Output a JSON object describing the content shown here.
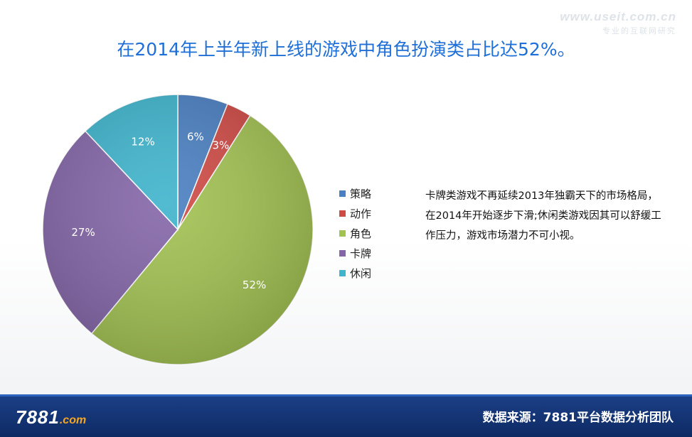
{
  "watermark": {
    "url": "www.useit.com.cn",
    "subtitle": "专业的互联网研究"
  },
  "title": "在2014年上半年新上线的游戏中角色扮演类占比达52%。",
  "note": "卡牌类游戏不再延续2013年独霸天下的市场格局，在2014年开始逐步下滑;休闲类游戏因其可以舒缓工作压力，游戏市场潜力不可小视。",
  "footer": {
    "logo_number": "7881",
    "logo_domain": ".com",
    "source": "数据来源：7881平台数据分析团队"
  },
  "chart_data": {
    "type": "pie",
    "title": "",
    "legend_position": "right",
    "slices": [
      {
        "label": "策略",
        "value": 6,
        "display": "6%",
        "color": "#4a7fc1"
      },
      {
        "label": "动作",
        "value": 3,
        "display": "3%",
        "color": "#cf4a45"
      },
      {
        "label": "角色",
        "value": 52,
        "display": "52%",
        "color": "#a2c252"
      },
      {
        "label": "卡牌",
        "value": 27,
        "display": "27%",
        "color": "#8466a8"
      },
      {
        "label": "休闲",
        "value": 12,
        "display": "12%",
        "color": "#3fb4cc"
      }
    ]
  }
}
